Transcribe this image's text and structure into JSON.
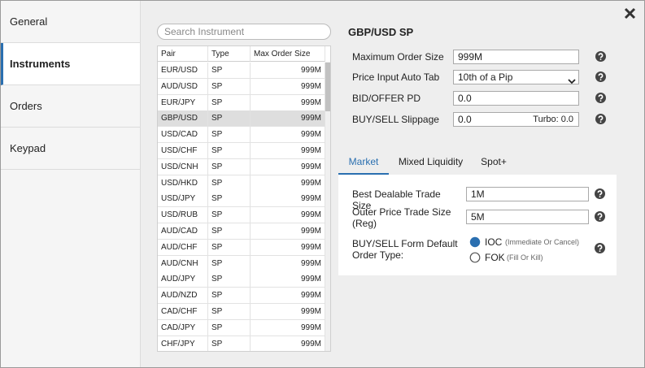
{
  "sidebar": {
    "items": [
      "General",
      "Instruments",
      "Orders",
      "Keypad"
    ]
  },
  "search": {
    "placeholder": "Search Instrument"
  },
  "table": {
    "columns": [
      "Pair",
      "Type",
      "Max Order Size"
    ],
    "rows": [
      [
        "EUR/USD",
        "SP",
        "999M"
      ],
      [
        "AUD/USD",
        "SP",
        "999M"
      ],
      [
        "EUR/JPY",
        "SP",
        "999M"
      ],
      [
        "GBP/USD",
        "SP",
        "999M"
      ],
      [
        "USD/CAD",
        "SP",
        "999M"
      ],
      [
        "USD/CHF",
        "SP",
        "999M"
      ],
      [
        "USD/CNH",
        "SP",
        "999M"
      ],
      [
        "USD/HKD",
        "SP",
        "999M"
      ],
      [
        "USD/JPY",
        "SP",
        "999M"
      ],
      [
        "USD/RUB",
        "SP",
        "999M"
      ],
      [
        "AUD/CAD",
        "SP",
        "999M"
      ],
      [
        "AUD/CHF",
        "SP",
        "999M"
      ],
      [
        "AUD/CNH",
        "SP",
        "999M"
      ],
      [
        "AUD/JPY",
        "SP",
        "999M"
      ],
      [
        "AUD/NZD",
        "SP",
        "999M"
      ],
      [
        "CAD/CHF",
        "SP",
        "999M"
      ],
      [
        "CAD/JPY",
        "SP",
        "999M"
      ],
      [
        "CHF/JPY",
        "SP",
        "999M"
      ]
    ]
  },
  "detail": {
    "title": "GBP/USD SP",
    "fields": [
      {
        "label": "Maximum Order Size",
        "value": "999M"
      },
      {
        "label": "Price Input Auto Tab",
        "value": "10th of a Pip"
      },
      {
        "label": "BID/OFFER PD",
        "value": "0.0"
      },
      {
        "label": "BUY/SELL Slippage",
        "value": "0.0",
        "extra": "Turbo: 0.0"
      }
    ]
  },
  "tabs": [
    "Market",
    "Mixed Liquidity",
    "Spot+"
  ],
  "market": {
    "fields": [
      {
        "label": "Best Dealable Trade Size",
        "value": "1M"
      },
      {
        "label": "Outer Price Trade Size (Reg)",
        "value": "5M"
      }
    ],
    "order_type": {
      "label": "BUY/SELL Form Default Order Type:",
      "options": [
        {
          "name": "IOC",
          "note": "(Immediate Or Cancel)"
        },
        {
          "name": "FOK",
          "note": "(Fill Or Kill)"
        }
      ]
    }
  }
}
